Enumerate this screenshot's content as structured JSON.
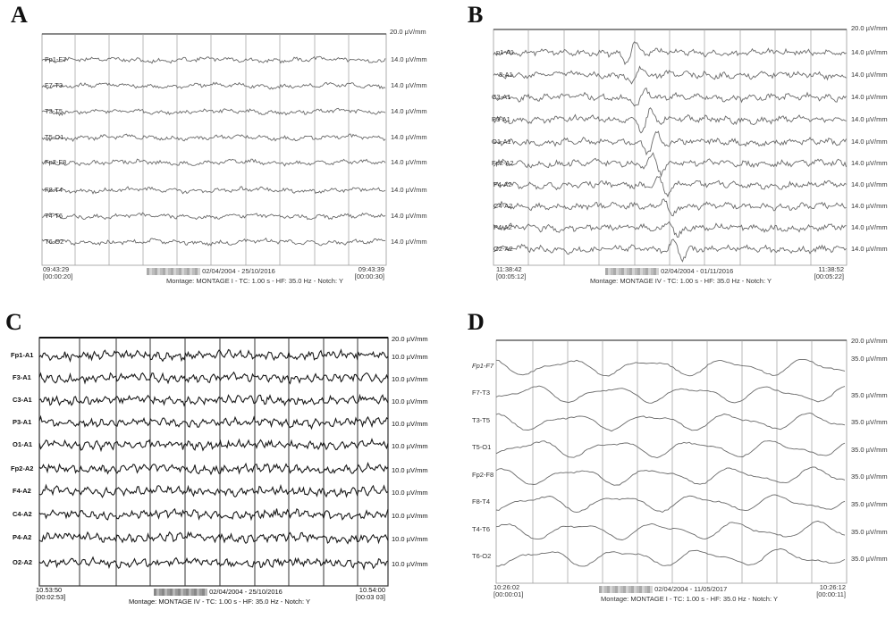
{
  "panels": [
    {
      "letter": "A",
      "top_gain": "20.0 µV/mm",
      "channels": [
        "Fp1-F7",
        "F7-T3",
        "T3-T5",
        "T5-O1",
        "Fp2-F8",
        "F8-T4",
        "T4-T6",
        "T6-O2"
      ],
      "gain": "14.0 µV/mm",
      "start_time": "09:43:29",
      "start_offset": "[00:00:20]",
      "end_time": "09:43:39",
      "end_offset": "[00:00:30]",
      "dates": "02/04/2004 - 25/10/2016",
      "montage": "Montage: MONTAGE I - TC: 1.00 s - HF: 35.0 Hz - Notch: Y",
      "style": "light"
    },
    {
      "letter": "B",
      "top_gain": "20.0 µV/mm",
      "channels": [
        "p1-A1",
        "3-A1",
        "C3-A1",
        "P3-A1",
        "O1-A1",
        "Fp2-A2",
        "F4-A2",
        "C4-A2",
        "P4-A2",
        "O2-A2"
      ],
      "gain": "14.0 µV/mm",
      "start_time": "11:38:42",
      "start_offset": "[00:05:12]",
      "end_time": "11:38:52",
      "end_offset": "[00:05:22]",
      "dates": "02/04/2004 - 01/11/2016",
      "montage": "Montage: MONTAGE IV - TC: 1.00 s - HF: 35.0 Hz - Notch: Y",
      "style": "spike"
    },
    {
      "letter": "C",
      "top_gain": "20.0 µV/mm",
      "channels": [
        "Fp1-A1",
        "F3-A1",
        "C3-A1",
        "P3-A1",
        "O1-A1",
        "Fp2-A2",
        "F4-A2",
        "C4-A2",
        "P4-A2",
        "O2-A2"
      ],
      "gain": "10.0 µV/mm",
      "start_time": "10.53:50",
      "start_offset": "[00:02:53]",
      "end_time": "10.54:00",
      "end_offset": "[00:03 03]",
      "dates": "02/04/2004 - 25/10/2016",
      "montage": "Montage: MONTAGE IV - TC: 1.00 s - HF: 35.0 Hz - Notch: Y",
      "style": "dark"
    },
    {
      "letter": "D",
      "top_gain": "20.0 µV/mm",
      "channels": [
        "Fp1-F7",
        "F7-T3",
        "T3-T5",
        "T5-O1",
        "Fp2-F8",
        "F8-T4",
        "T4-T6",
        "T6-O2"
      ],
      "gain": "35.0 µV/mm",
      "start_time": "10:26:02",
      "start_offset": "[00:00:01]",
      "end_time": "10:26:12",
      "end_offset": "[00:00:11]",
      "dates": "02/04/2004 - 11/05/2017",
      "montage": "Montage: MONTAGE I - TC: 1.00 s - HF: 35.0 Hz - Notch: Y",
      "style": "slow"
    }
  ],
  "colors": {
    "trace_light": "#6a6a6a",
    "trace_dark": "#1a1a1a",
    "grid": "#9a9a9a",
    "background": "#ffffff"
  }
}
